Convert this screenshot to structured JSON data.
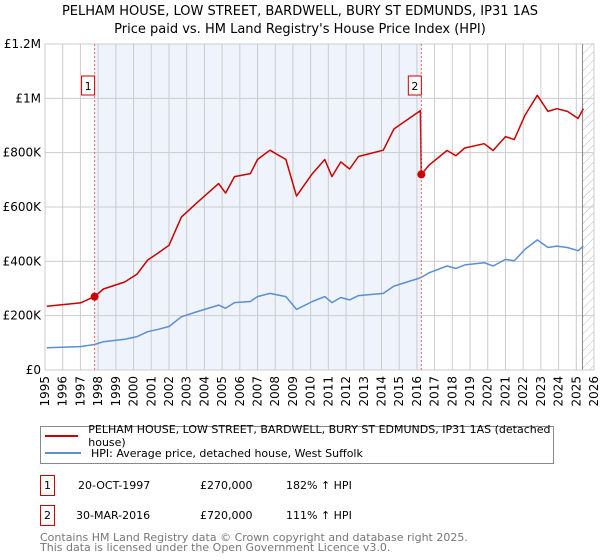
{
  "header": {
    "title": "PELHAM HOUSE, LOW STREET, BARDWELL, BURY ST EDMUNDS, IP31 1AS",
    "subtitle": "Price paid vs. HM Land Registry's House Price Index (HPI)"
  },
  "chart_data": {
    "type": "line",
    "title": "PELHAM HOUSE, LOW STREET, BARDWELL, BURY ST EDMUNDS, IP31 1AS",
    "subtitle": "Price paid vs. HM Land Registry's House Price Index (HPI)",
    "xlim": [
      1995,
      2026
    ],
    "ylim": [
      0,
      1200000
    ],
    "y_ticks": [
      {
        "v": 0,
        "label": "£0"
      },
      {
        "v": 200000,
        "label": "£200K"
      },
      {
        "v": 400000,
        "label": "£400K"
      },
      {
        "v": 600000,
        "label": "£600K"
      },
      {
        "v": 800000,
        "label": "£800K"
      },
      {
        "v": 1000000,
        "label": "£1M"
      },
      {
        "v": 1200000,
        "label": "£1.2M"
      }
    ],
    "x_ticks": [
      "1995",
      "1996",
      "1997",
      "1998",
      "1999",
      "2000",
      "2001",
      "2002",
      "2003",
      "2004",
      "2005",
      "2006",
      "2007",
      "2008",
      "2009",
      "2010",
      "2011",
      "2012",
      "2013",
      "2014",
      "2015",
      "2016",
      "2017",
      "2018",
      "2019",
      "2020",
      "2021",
      "2022",
      "2023",
      "2024",
      "2025",
      "2026"
    ],
    "grid": true,
    "shaded_range": [
      1997.8,
      2016.25
    ],
    "forecast_hatch_from": 2025.35,
    "series": [
      {
        "name": "PELHAM HOUSE, LOW STREET, BARDWELL, BURY ST EDMUNDS, IP31 1AS (detached house)",
        "color": "#cc0000",
        "x": [
          1995.1,
          1997.0,
          1997.8,
          1998.3,
          1999.5,
          2000.2,
          2000.8,
          2001.4,
          2002.0,
          2002.7,
          2003.6,
          2004.8,
          2005.2,
          2005.7,
          2006.6,
          2007.0,
          2007.7,
          2008.6,
          2009.2,
          2010.1,
          2010.8,
          2011.2,
          2011.7,
          2012.2,
          2012.7,
          2014.1,
          2014.7,
          2016.2,
          2016.25,
          2016.7,
          2017.7,
          2018.2,
          2018.7,
          2019.8,
          2020.3,
          2021.0,
          2021.5,
          2022.1,
          2022.8,
          2023.4,
          2023.9,
          2024.5,
          2025.1,
          2025.4
        ],
        "y": [
          235000,
          247000,
          270000,
          298000,
          324000,
          353000,
          405000,
          431000,
          459000,
          563000,
          617000,
          686000,
          651000,
          712000,
          723000,
          775000,
          809000,
          775000,
          640000,
          723000,
          775000,
          712000,
          766000,
          740000,
          786000,
          809000,
          887000,
          955000,
          720000,
          755000,
          808000,
          789000,
          817000,
          833000,
          808000,
          859000,
          848000,
          937000,
          1011000,
          952000,
          962000,
          952000,
          926000,
          962000
        ]
      },
      {
        "name": "HPI: Average price, detached house, West Suffolk",
        "color": "#5b8fd4",
        "x": [
          1995.1,
          1997.0,
          1997.8,
          1998.3,
          1999.5,
          2000.2,
          2000.8,
          2001.4,
          2002.0,
          2002.7,
          2003.6,
          2004.8,
          2005.2,
          2005.7,
          2006.6,
          2007.0,
          2007.7,
          2008.6,
          2009.2,
          2010.1,
          2010.8,
          2011.2,
          2011.7,
          2012.2,
          2012.7,
          2014.1,
          2014.7,
          2016.1,
          2016.25,
          2016.7,
          2017.7,
          2018.2,
          2018.7,
          2019.8,
          2020.3,
          2021.0,
          2021.5,
          2022.1,
          2022.8,
          2023.4,
          2023.9,
          2024.5,
          2025.1,
          2025.4
        ],
        "y": [
          82000,
          86000,
          94000,
          104000,
          113000,
          123000,
          141000,
          150000,
          160000,
          196000,
          215000,
          239000,
          227000,
          248000,
          252000,
          270000,
          282000,
          270000,
          223000,
          252000,
          270000,
          248000,
          267000,
          258000,
          274000,
          282000,
          309000,
          337000,
          341000,
          358000,
          383000,
          374000,
          387000,
          395000,
          383000,
          407000,
          402000,
          444000,
          479000,
          451000,
          456000,
          451000,
          439000,
          456000
        ]
      }
    ],
    "sales": [
      {
        "id": "1",
        "x": 1997.8,
        "y": 270000
      },
      {
        "id": "2",
        "x": 2016.25,
        "y": 720000
      }
    ],
    "legend_position": "bottom"
  },
  "legend": {
    "items": [
      {
        "label": "PELHAM HOUSE, LOW STREET, BARDWELL, BURY ST EDMUNDS, IP31 1AS (detached house)",
        "color": "#cc0000"
      },
      {
        "label": "HPI: Average price, detached house, West Suffolk",
        "color": "#5b8fd4"
      }
    ]
  },
  "transactions": [
    {
      "id": "1",
      "date": "20-OCT-1997",
      "price": "£270,000",
      "hpi": "182% ↑ HPI"
    },
    {
      "id": "2",
      "date": "30-MAR-2016",
      "price": "£720,000",
      "hpi": "111% ↑ HPI"
    }
  ],
  "footer": {
    "line1": "Contains HM Land Registry data © Crown copyright and database right 2025.",
    "line2": "This data is licensed under the Open Government Licence v3.0."
  }
}
